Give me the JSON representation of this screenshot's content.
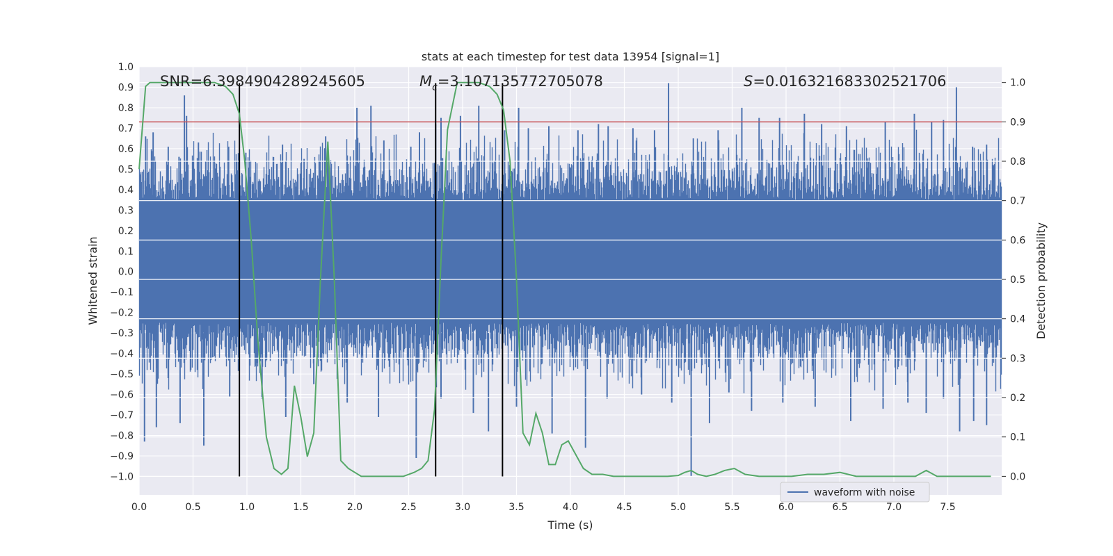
{
  "chart_data": {
    "type": "line",
    "title": "stats at each timestep for test data 13954 [signal=1]",
    "xlabel": "Time (s)",
    "ylabel_left": "Whitened strain",
    "ylabel_right": "Detection probability",
    "xlim": [
      0.0,
      8.0
    ],
    "ylim_left": [
      -1.09,
      1.0
    ],
    "ylim_right": [
      -0.047,
      1.04
    ],
    "x_ticks": [
      "0.0",
      "0.5",
      "1.0",
      "1.5",
      "2.0",
      "2.5",
      "3.0",
      "3.5",
      "4.0",
      "4.5",
      "5.0",
      "5.5",
      "6.0",
      "6.5",
      "7.0",
      "7.5"
    ],
    "y_left_ticks": [
      "1.0",
      "0.9",
      "0.8",
      "0.7",
      "0.6",
      "0.5",
      "0.4",
      "0.3",
      "0.2",
      "0.1",
      "0.0",
      "−0.1",
      "−0.2",
      "−0.3",
      "−0.4",
      "−0.5",
      "−0.6",
      "−0.7",
      "−0.8",
      "−0.9",
      "−1.0"
    ],
    "y_right_ticks": [
      "1.0",
      "0.9",
      "0.8",
      "0.7",
      "0.6",
      "0.5",
      "0.4",
      "0.3",
      "0.2",
      "0.1",
      "0.0"
    ],
    "grid": true,
    "legend_position": "bottom-right",
    "annotations": {
      "snr": "SNR=6.3984904289245605",
      "mc_symbol": "M",
      "mc_sub": "c",
      "mc_value": "=3.107135772705078",
      "s_symbol": "S",
      "s_value": "=0.016321683302521706"
    },
    "series": [
      {
        "name": "waveform with noise",
        "axis": "left",
        "color": "#4c72b0",
        "description_type": "noise-band",
        "band_core": [
          -0.25,
          0.35
        ],
        "band_extent": [
          -0.6,
          0.7
        ],
        "spikes_up": [
          [
            0.06,
            0.66
          ],
          [
            0.13,
            0.68
          ],
          [
            0.27,
            0.61
          ],
          [
            0.37,
            0.56
          ],
          [
            0.42,
            0.86
          ],
          [
            0.44,
            0.76
          ],
          [
            0.55,
            0.63
          ],
          [
            0.83,
            0.61
          ],
          [
            0.99,
            0.58
          ],
          [
            1.33,
            0.62
          ],
          [
            1.53,
            0.55
          ],
          [
            1.73,
            0.66
          ],
          [
            2.02,
            0.8
          ],
          [
            2.15,
            0.81
          ],
          [
            2.27,
            0.64
          ],
          [
            2.52,
            0.61
          ],
          [
            2.6,
            0.68
          ],
          [
            2.75,
            0.72
          ],
          [
            2.8,
            0.75
          ],
          [
            2.98,
            0.76
          ],
          [
            3.15,
            0.81
          ],
          [
            3.39,
            0.69
          ],
          [
            3.52,
            0.8
          ],
          [
            3.61,
            0.7
          ],
          [
            3.8,
            0.71
          ],
          [
            4.07,
            0.69
          ],
          [
            4.26,
            0.72
          ],
          [
            4.35,
            0.71
          ],
          [
            4.58,
            0.7
          ],
          [
            4.78,
            0.69
          ],
          [
            4.91,
            0.92
          ],
          [
            5.14,
            0.65
          ],
          [
            5.37,
            0.69
          ],
          [
            5.59,
            0.8
          ],
          [
            5.75,
            0.75
          ],
          [
            5.94,
            0.75
          ],
          [
            6.17,
            0.77
          ],
          [
            6.33,
            0.72
          ],
          [
            6.56,
            0.71
          ],
          [
            6.92,
            0.73
          ],
          [
            7.19,
            0.77
          ],
          [
            7.35,
            0.73
          ],
          [
            7.46,
            0.74
          ],
          [
            7.58,
            0.9
          ],
          [
            7.73,
            0.61
          ],
          [
            7.86,
            0.62
          ]
        ],
        "spikes_down": [
          [
            0.05,
            -0.83
          ],
          [
            0.16,
            -0.76
          ],
          [
            0.38,
            -0.74
          ],
          [
            0.6,
            -0.85
          ],
          [
            0.84,
            -0.61
          ],
          [
            1.14,
            -0.62
          ],
          [
            1.36,
            -0.71
          ],
          [
            1.62,
            -0.55
          ],
          [
            1.93,
            -0.64
          ],
          [
            2.22,
            -0.71
          ],
          [
            2.57,
            -0.91
          ],
          [
            2.8,
            -0.62
          ],
          [
            3.1,
            -0.69
          ],
          [
            3.24,
            -0.78
          ],
          [
            3.5,
            -0.66
          ],
          [
            3.83,
            -0.79
          ],
          [
            4.14,
            -0.86
          ],
          [
            4.34,
            -0.62
          ],
          [
            4.66,
            -0.6
          ],
          [
            4.94,
            -0.64
          ],
          [
            5.12,
            -1.0
          ],
          [
            5.29,
            -0.74
          ],
          [
            5.47,
            -0.59
          ],
          [
            5.68,
            -0.68
          ],
          [
            5.97,
            -0.64
          ],
          [
            6.27,
            -0.66
          ],
          [
            6.6,
            -0.73
          ],
          [
            6.9,
            -0.67
          ],
          [
            7.13,
            -0.64
          ],
          [
            7.3,
            -0.69
          ],
          [
            7.46,
            -0.62
          ],
          [
            7.61,
            -0.78
          ],
          [
            7.74,
            -0.73
          ],
          [
            7.86,
            -0.75
          ]
        ]
      },
      {
        "name": "",
        "axis": "right",
        "color": "#55a868",
        "x": [
          0.0,
          0.06,
          0.1,
          0.2,
          0.3,
          0.4,
          0.5,
          0.6,
          0.7,
          0.8,
          0.87,
          0.93,
          0.98,
          1.04,
          1.1,
          1.18,
          1.25,
          1.32,
          1.38,
          1.44,
          1.5,
          1.56,
          1.62,
          1.68,
          1.75,
          1.81,
          1.87,
          1.94,
          2.0,
          2.06,
          2.15,
          2.25,
          2.35,
          2.45,
          2.55,
          2.62,
          2.68,
          2.74,
          2.8,
          2.86,
          2.95,
          3.05,
          3.15,
          3.25,
          3.32,
          3.38,
          3.44,
          3.5,
          3.56,
          3.62,
          3.68,
          3.74,
          3.8,
          3.86,
          3.92,
          3.98,
          4.04,
          4.12,
          4.2,
          4.3,
          4.4,
          4.5,
          4.6,
          4.7,
          4.8,
          4.9,
          5.0,
          5.06,
          5.12,
          5.18,
          5.26,
          5.34,
          5.43,
          5.52,
          5.62,
          5.75,
          5.9,
          6.05,
          6.2,
          6.35,
          6.5,
          6.65,
          6.8,
          6.95,
          7.1,
          7.2,
          7.3,
          7.4,
          7.5,
          7.6,
          7.7,
          7.8,
          7.9
        ],
        "y": [
          0.78,
          0.99,
          1.0,
          1.0,
          1.0,
          1.0,
          1.0,
          1.0,
          1.0,
          0.99,
          0.97,
          0.92,
          0.8,
          0.6,
          0.35,
          0.1,
          0.02,
          0.005,
          0.02,
          0.23,
          0.15,
          0.05,
          0.11,
          0.49,
          0.85,
          0.5,
          0.04,
          0.02,
          0.01,
          0.0,
          0.0,
          0.0,
          0.0,
          0.0,
          0.01,
          0.02,
          0.04,
          0.17,
          0.55,
          0.88,
          1.0,
          1.0,
          1.0,
          0.99,
          0.97,
          0.93,
          0.8,
          0.5,
          0.11,
          0.08,
          0.16,
          0.11,
          0.03,
          0.03,
          0.08,
          0.09,
          0.06,
          0.02,
          0.005,
          0.005,
          0.0,
          0.0,
          0.0,
          0.0,
          0.0,
          0.0,
          0.002,
          0.01,
          0.015,
          0.005,
          0.0,
          0.005,
          0.015,
          0.02,
          0.005,
          0.0,
          0.0,
          0.0,
          0.005,
          0.005,
          0.01,
          0.0,
          0.0,
          0.0,
          0.0,
          0.0,
          0.015,
          0.0,
          0.0,
          0.0,
          0.0,
          0.0,
          0.0
        ]
      }
    ],
    "vertical_lines": [
      {
        "x": 0.93,
        "y_top": 0.92,
        "y_bottom": -1.0,
        "color": "#000000"
      },
      {
        "x": 2.75,
        "y_top": 0.92,
        "y_bottom": -1.0,
        "color": "#000000"
      },
      {
        "x": 3.37,
        "y_top": 0.92,
        "y_bottom": -1.0,
        "color": "#000000"
      }
    ],
    "horizontal_lines": [
      {
        "y_right": 0.9,
        "color": "#c44e52"
      }
    ],
    "colors": {
      "plot_background": "#eaeaf2",
      "grid": "#ffffff",
      "text": "#262626"
    },
    "legend": [
      {
        "label": "waveform with noise",
        "color": "#4c72b0"
      }
    ]
  }
}
